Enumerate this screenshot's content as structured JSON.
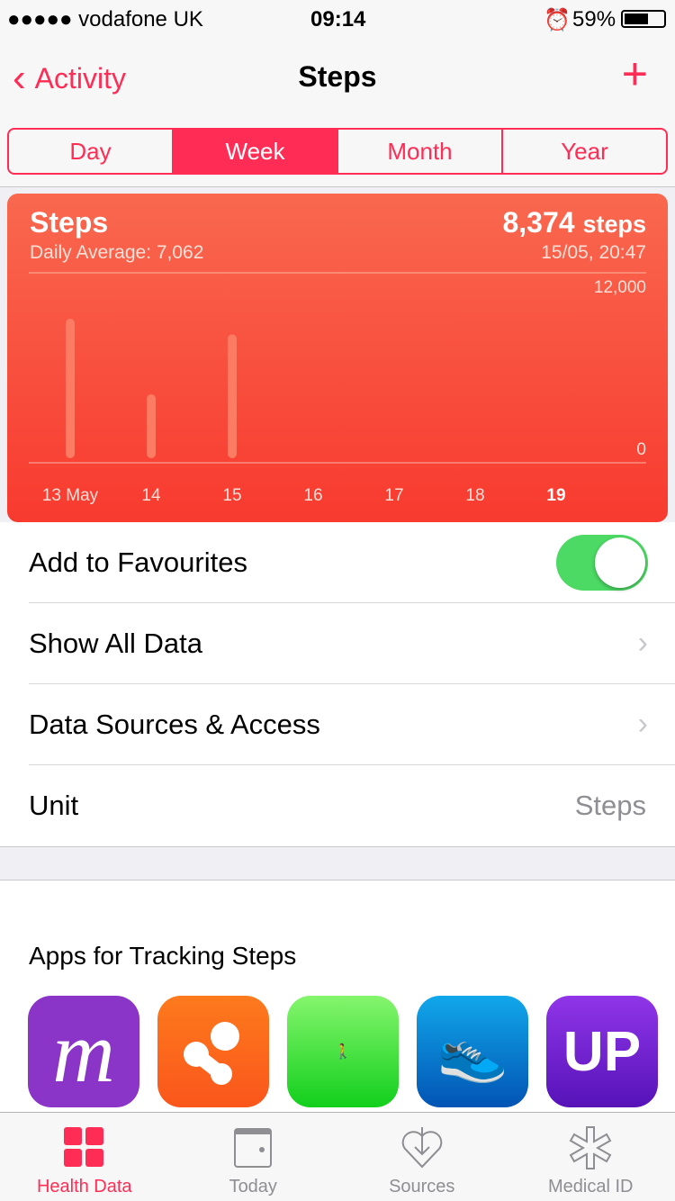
{
  "status": {
    "carrier": "●●●●● vodafone UK",
    "time": "09:14",
    "battery": "59%"
  },
  "nav": {
    "back_label": "Activity",
    "title": "Steps",
    "add_icon": "plus-icon"
  },
  "segments": [
    {
      "label": "Day"
    },
    {
      "label": "Week",
      "selected": true
    },
    {
      "label": "Month"
    },
    {
      "label": "Year"
    }
  ],
  "card": {
    "title": "Steps",
    "daily_average": "Daily Average: 7,062",
    "value": "8,374",
    "unit": "steps",
    "timestamp": "15/05, 20:47"
  },
  "chart_data": {
    "type": "bar",
    "categories": [
      "13 May",
      "14",
      "15",
      "16",
      "17",
      "18",
      "19"
    ],
    "values": [
      9030,
      4140,
      8020,
      null,
      null,
      null,
      null
    ],
    "ylim": [
      0,
      12000
    ],
    "yticks": [
      "12,000",
      "0"
    ],
    "highlight": "19",
    "colors": {
      "bar": "#fb7b63",
      "accent": "#ff2d55"
    }
  },
  "list": {
    "favourites": "Add to Favourites",
    "favourites_on": true,
    "show_all": "Show All Data",
    "sources": "Data Sources & Access",
    "unit_label": "Unit",
    "unit_value": "Steps"
  },
  "apps": {
    "heading": "Apps for Tracking Steps",
    "items": [
      {
        "name": "m",
        "color": "#8a35c8"
      },
      {
        "name": "orange-app",
        "color": "#fb6a1c"
      },
      {
        "name": "walker",
        "color": "#3fd83a"
      },
      {
        "name": "shoe",
        "color": "#0a7fd0"
      },
      {
        "name": "UP",
        "color": "#6a1fc0"
      }
    ]
  },
  "tabs": [
    {
      "label": "Health Data",
      "icon": "grid-icon",
      "active": true
    },
    {
      "label": "Today",
      "icon": "calendar-icon"
    },
    {
      "label": "Sources",
      "icon": "heart-download-icon"
    },
    {
      "label": "Medical ID",
      "icon": "asterisk-icon"
    }
  ]
}
